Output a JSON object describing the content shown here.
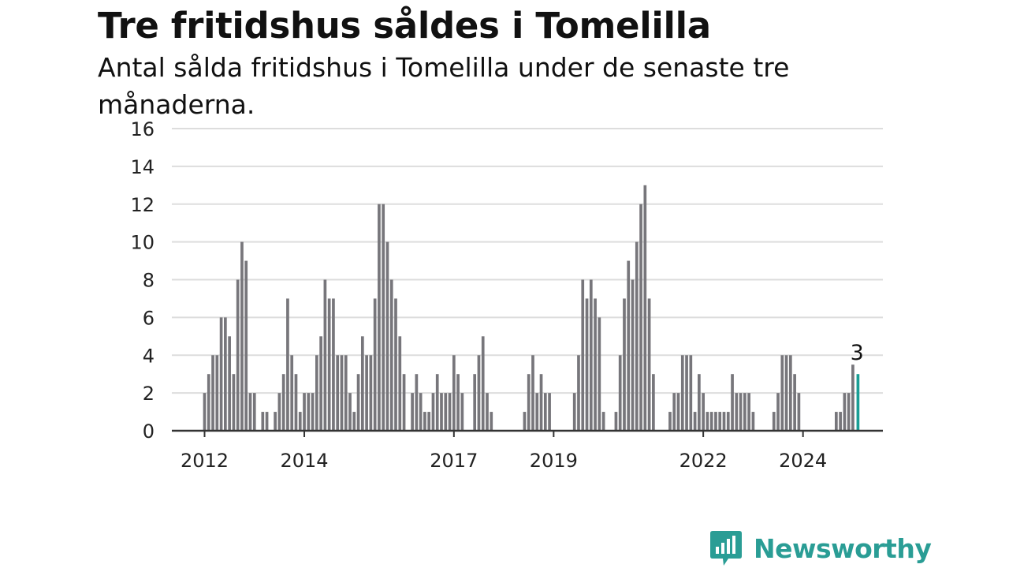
{
  "title": "Tre fritidshus såldes i Tomelilla",
  "subtitle": "Antal sålda fritidshus i Tomelilla under de senaste tre månaderna.",
  "brand": {
    "name": "Newsworthy",
    "color": "#2a9d95"
  },
  "colors": {
    "bar": "#77767b",
    "highlight": "#1a9e95",
    "grid": "#dddddd",
    "axis": "#333333"
  },
  "chart_data": {
    "type": "bar",
    "x_start": "2012-01",
    "frequency": "monthly",
    "ylim": [
      0,
      16
    ],
    "yticks": [
      0,
      2,
      4,
      6,
      8,
      10,
      12,
      14,
      16
    ],
    "xtick_labels": [
      "2012",
      "2014",
      "2017",
      "2019",
      "2022",
      "2024"
    ],
    "grid": "horizontal",
    "values": [
      2,
      3,
      4,
      4,
      6,
      6,
      5,
      3,
      8,
      10,
      9,
      2,
      2,
      0,
      1,
      1,
      0,
      1,
      2,
      3,
      7,
      4,
      3,
      1,
      2,
      2,
      2,
      4,
      5,
      8,
      7,
      7,
      4,
      4,
      4,
      2,
      1,
      3,
      5,
      4,
      4,
      7,
      12,
      12,
      10,
      8,
      7,
      5,
      3,
      0,
      2,
      3,
      2,
      1,
      1,
      2,
      3,
      2,
      2,
      2,
      4,
      3,
      2,
      0,
      0,
      3,
      4,
      5,
      2,
      1,
      0,
      0,
      0,
      0,
      0,
      0,
      0,
      1,
      3,
      4,
      2,
      3,
      2,
      2,
      0,
      0,
      0,
      0,
      0,
      2,
      4,
      8,
      7,
      8,
      7,
      6,
      1,
      0,
      0,
      1,
      4,
      7,
      9,
      8,
      10,
      12,
      13,
      7,
      3,
      0,
      0,
      0,
      1,
      2,
      2,
      4,
      4,
      4,
      1,
      3,
      2,
      1,
      1,
      1,
      1,
      1,
      1,
      3,
      2,
      2,
      2,
      2,
      1,
      0,
      0,
      0,
      0,
      1,
      2,
      4,
      4,
      4,
      3,
      2,
      0,
      0,
      0,
      0,
      0,
      0,
      0,
      0,
      1,
      1,
      2,
      2,
      3.5,
      3
    ],
    "highlight_last": true,
    "annotation": "3"
  }
}
